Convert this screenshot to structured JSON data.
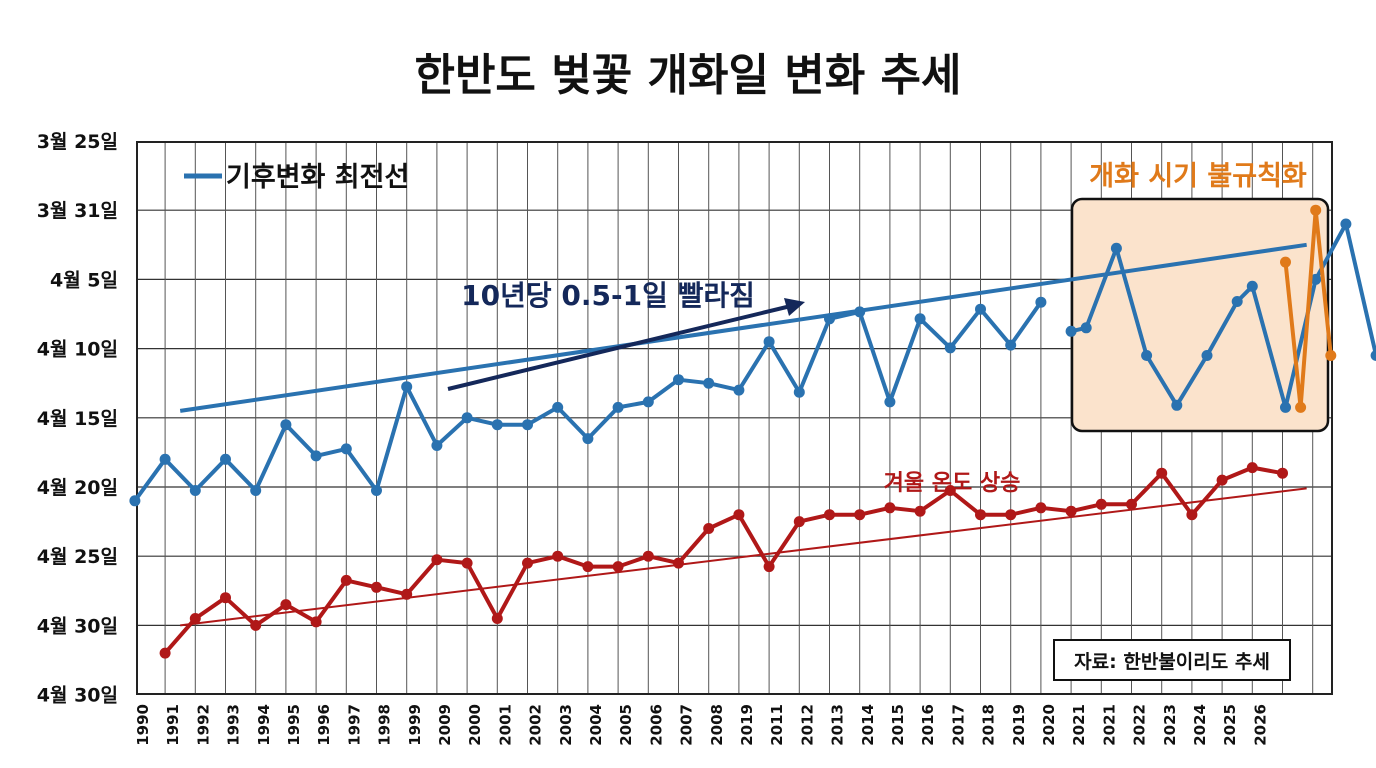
{
  "chart_data": {
    "type": "line",
    "title": "한반도 벚꽃 개화일 변화 추세",
    "y_tick_labels": [
      "3월 25일",
      "3월 31일",
      "4월 5일",
      "4월 10일",
      "4월 15일",
      "4월 20일",
      "4월 25일",
      "4월 30일",
      "4월 30일"
    ],
    "x_tick_labels": [
      "1990",
      "1991",
      "1992",
      "1993",
      "1994",
      "1995",
      "1996",
      "1997",
      "1998",
      "1999",
      "2009",
      "2000",
      "2001",
      "2002",
      "2003",
      "2004",
      "2005",
      "2006",
      "2007",
      "2008",
      "2019",
      "2011",
      "2012",
      "2013",
      "2014",
      "2015",
      "2016",
      "2017",
      "2018",
      "2019",
      "2020",
      "2021",
      "2021",
      "2022",
      "2023",
      "2024",
      "2025",
      "2026"
    ],
    "grid": true,
    "legend": {
      "position": "top-left",
      "entries": [
        "기후변화 최전선"
      ]
    },
    "annotations": {
      "trend_arrow": "10년당 0.5-1일 빨라짐",
      "temperature_label": "겨울 온도 상승",
      "irregular_box_title": "개화 시기 불규칙화",
      "source": "자료: 한반불이리도 추세"
    },
    "colors": {
      "blossom": "#2a72b0",
      "temperature": "#b01818",
      "irregular": "#e07a1a",
      "arrow": "#14285a",
      "highlight_fill": "#fbe3cc"
    },
    "series": [
      {
        "name": "기후변화 최전선",
        "role": "blossom",
        "values": [
          [
            0,
            4.37
          ],
          [
            1,
            3.78
          ],
          [
            2,
            4.23
          ],
          [
            3,
            3.78
          ],
          [
            4,
            4.23
          ],
          [
            5,
            3.4
          ],
          [
            6,
            3.75
          ],
          [
            7,
            3.66
          ],
          [
            8,
            4.23
          ],
          [
            9,
            2.72
          ],
          [
            10,
            3.65
          ],
          [
            11,
            3.33
          ],
          [
            12,
            3.43
          ],
          [
            13,
            3.43
          ],
          [
            14,
            3.23
          ],
          [
            15,
            3.62
          ],
          [
            16,
            3.23
          ],
          [
            17,
            3.15
          ],
          [
            18,
            2.93
          ],
          [
            19,
            2.98
          ],
          [
            20,
            3.08
          ],
          [
            21,
            2.33
          ],
          [
            22,
            3.03
          ],
          [
            23,
            2.02
          ],
          [
            24,
            1.94
          ],
          [
            25,
            3.15
          ],
          [
            26,
            2.02
          ],
          [
            27,
            2.33
          ],
          [
            28,
            1.88
          ],
          [
            29,
            2.27
          ],
          [
            30,
            1.72
          ],
          [
            30.5,
            2.1
          ],
          [
            31,
            2.07
          ],
          [
            32,
            0.92
          ],
          [
            33,
            2.5
          ],
          [
            34,
            3.11
          ],
          [
            35,
            2.5
          ],
          [
            36,
            1.75
          ],
          [
            36.5,
            1.51
          ],
          [
            37,
            3.1
          ],
          [
            38,
            1.48
          ],
          [
            40,
            2.5
          ]
        ],
        "trend": [
          [
            1,
            3.9
          ],
          [
            38.3,
            1.5
          ]
        ]
      },
      {
        "name": "개화 시기 불규칙화",
        "role": "irregular",
        "values": [
          [
            37.5,
            1.51
          ],
          [
            38.5,
            1.2
          ],
          [
            39.5,
            3.1
          ],
          [
            40.2,
            0.0
          ],
          [
            40.7,
            2.53
          ],
          [
            41.3,
            0.0
          ]
        ]
      },
      {
        "name": "겨울 온도 상승",
        "role": "temperature",
        "trend": [
          [
            1,
            7.0
          ],
          [
            38.3,
            5.02
          ]
        ]
      }
    ]
  }
}
